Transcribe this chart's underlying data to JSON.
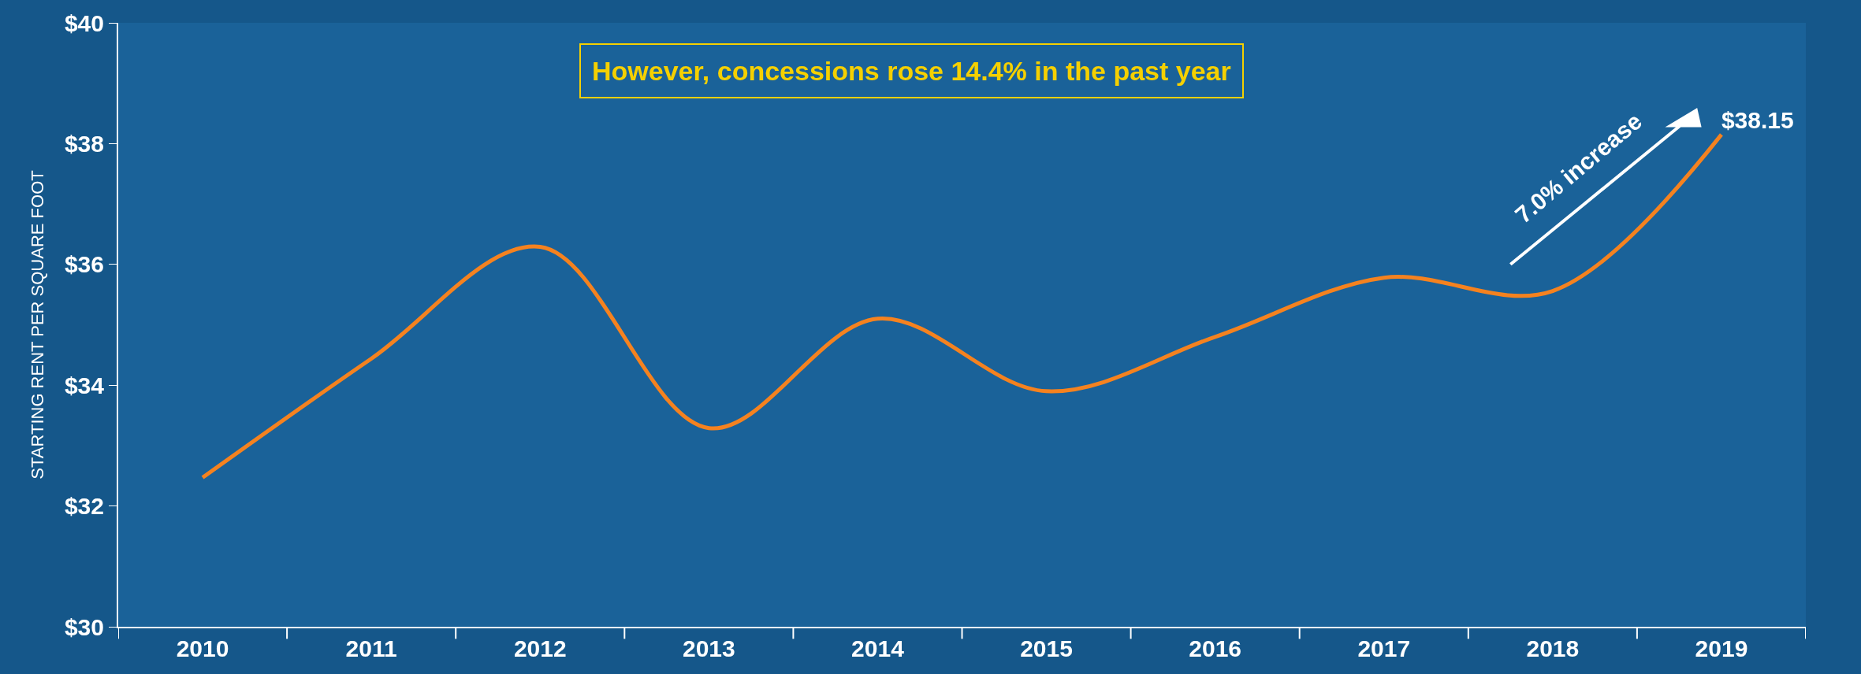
{
  "chart_data": {
    "type": "line",
    "ylabel": "STARTING RENT PER SQUARE FOOT",
    "categories": [
      "2010",
      "2011",
      "2012",
      "2013",
      "2014",
      "2015",
      "2016",
      "2017",
      "2018",
      "2019"
    ],
    "series": [
      {
        "color": "#f5821f",
        "values": [
          32.47,
          34.44,
          36.29,
          33.29,
          35.1,
          33.9,
          34.8,
          35.78,
          35.56,
          38.15
        ],
        "value_labels": [
          null,
          null,
          null,
          null,
          null,
          null,
          null,
          null,
          null,
          "$38.15"
        ]
      }
    ],
    "ylim": [
      30,
      40
    ],
    "yticks": [
      {
        "value": 30,
        "label": "$30"
      },
      {
        "value": 32,
        "label": "$32"
      },
      {
        "value": 34,
        "label": "$34"
      },
      {
        "value": 36,
        "label": "$36"
      },
      {
        "value": 38,
        "label": "$38"
      },
      {
        "value": 40,
        "label": "$40"
      }
    ],
    "annotations": [
      "However, concessions rose 14.4% in the past year",
      "7.0% increase"
    ],
    "grid": false,
    "legend": false,
    "marker": "none",
    "line_style": "solid"
  }
}
